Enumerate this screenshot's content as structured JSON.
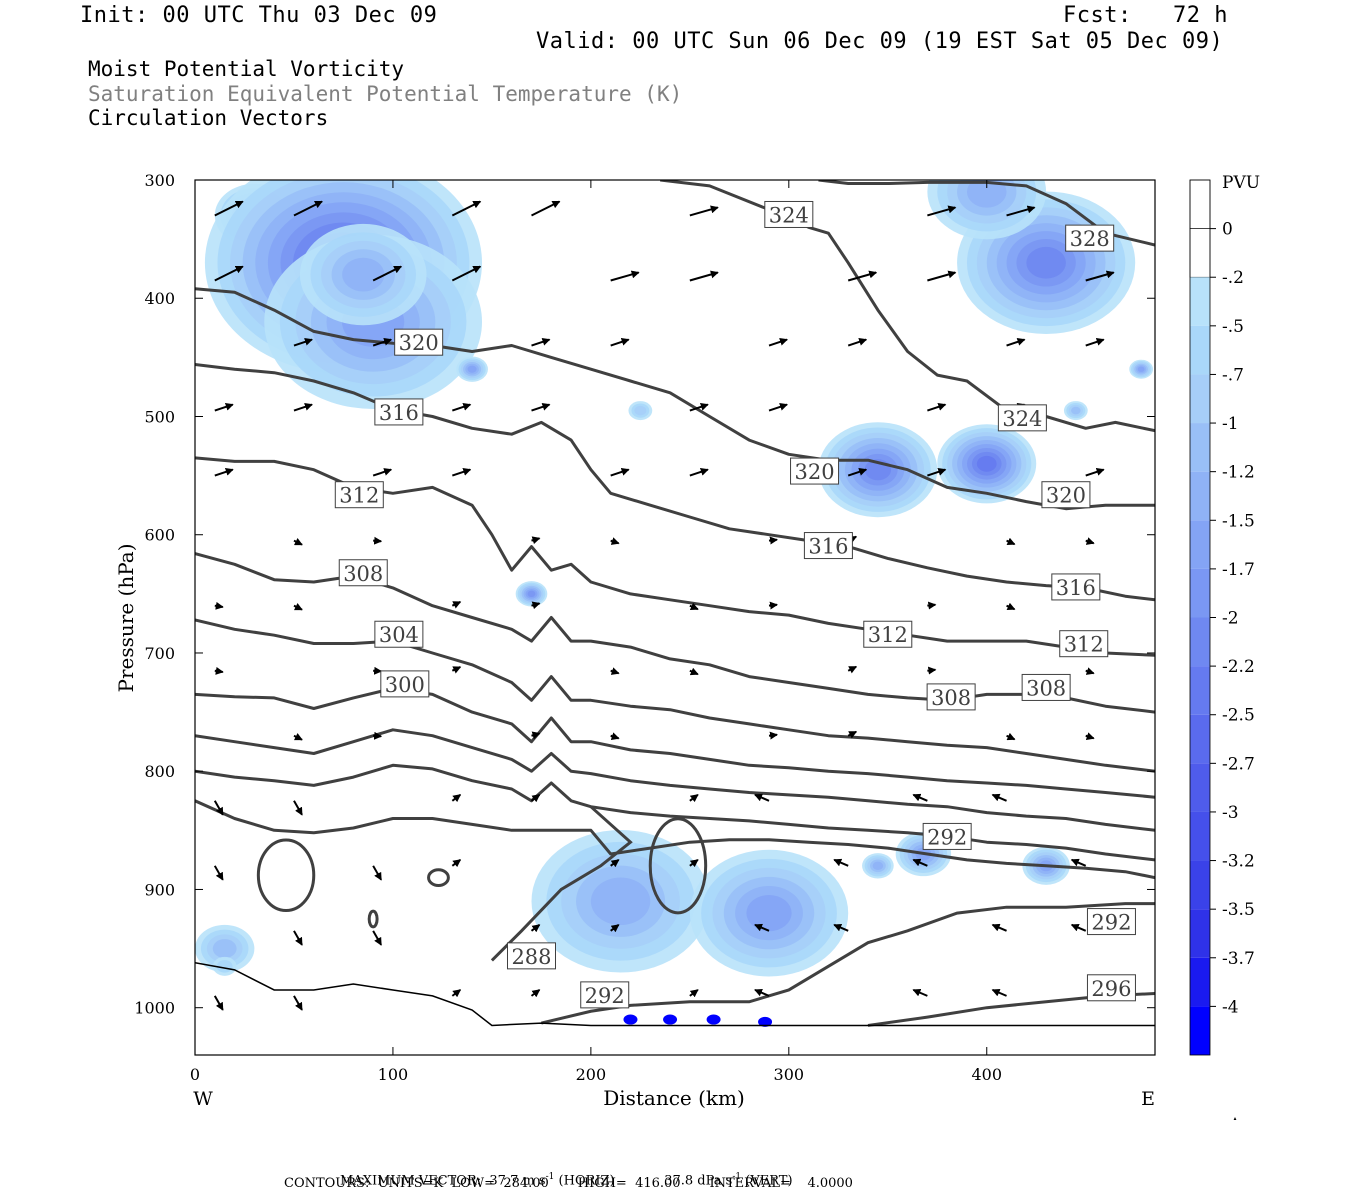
{
  "header": {
    "init": "Init: 00 UTC Thu 03 Dec 09",
    "fcst": "Fcst:   72 h",
    "valid": "Valid: 00 UTC Sun 06 Dec 09 (19 EST Sat 05 Dec 09)",
    "field1": "Moist Potential Vorticity",
    "field2": "Saturation Equivalent Potential Temperature (K)",
    "field3": "Circulation Vectors"
  },
  "footer": {
    "max_vector_label": "MAXIMUM VECTOR:",
    "horiz_value": "37.7 m s",
    "horiz_unit": "(HORIZ)",
    "vert_value": "37.8 dPa s",
    "vert_unit": "(VERT)",
    "exp": "-1",
    "contours": "CONTOURS:  UNITS=K  LOW=  284.00       HIGH=  416.00       INTERVAL=    4.0000"
  },
  "colors": {
    "contour": "#404040",
    "pv_light": "#b8e2fa",
    "pv_mid": "#99bff7",
    "pv_dark": "#0000ff"
  },
  "chart_data": {
    "type": "contour",
    "xlabel": "Distance (km)",
    "ylabel": "Pressure (hPa)",
    "x_ticks": [
      "0",
      "100",
      "200",
      "300",
      "400"
    ],
    "y_ticks": [
      "300",
      "400",
      "500",
      "600",
      "700",
      "800",
      "900",
      "1000"
    ],
    "xlim": [
      0,
      485
    ],
    "ylim": [
      300,
      1040
    ],
    "left_end": "W",
    "right_end": "E",
    "colorbar": {
      "unit": "PVU",
      "labels": [
        "0",
        "-.2",
        "-.5",
        "-.7",
        "-1",
        "-1.2",
        "-1.5",
        "-1.7",
        "-2",
        "-2.2",
        "-2.5",
        "-2.7",
        "-3",
        "-3.2",
        "-3.5",
        "-3.7",
        "-4"
      ],
      "colors": [
        "#ffffff",
        "#ffffff",
        "#b8e2fa",
        "#a9d7f9",
        "#a6cef8",
        "#99bff7",
        "#8fb2f6",
        "#84a4f5",
        "#7a97f3",
        "#6f88f1",
        "#657af0",
        "#5a6bee",
        "#4f5cec",
        "#4550eb",
        "#3a42e9",
        "#2f32e8",
        "#1a1af0",
        "#0000ff"
      ]
    },
    "contour_labels": [
      {
        "text": "324",
        "x": 300,
        "p": 330
      },
      {
        "text": "328",
        "x": 452,
        "p": 350
      },
      {
        "text": "320",
        "x": 113,
        "p": 438
      },
      {
        "text": "324",
        "x": 418,
        "p": 502
      },
      {
        "text": "316",
        "x": 103,
        "p": 497
      },
      {
        "text": "320",
        "x": 313,
        "p": 547
      },
      {
        "text": "320",
        "x": 440,
        "p": 567
      },
      {
        "text": "312",
        "x": 83,
        "p": 567
      },
      {
        "text": "316",
        "x": 320,
        "p": 610
      },
      {
        "text": "308",
        "x": 85,
        "p": 633
      },
      {
        "text": "316",
        "x": 445,
        "p": 645
      },
      {
        "text": "304",
        "x": 103,
        "p": 685
      },
      {
        "text": "312",
        "x": 350,
        "p": 685
      },
      {
        "text": "312",
        "x": 449,
        "p": 693
      },
      {
        "text": "300",
        "x": 106,
        "p": 727
      },
      {
        "text": "308",
        "x": 382,
        "p": 738
      },
      {
        "text": "308",
        "x": 430,
        "p": 730
      },
      {
        "text": "292",
        "x": 380,
        "p": 856
      },
      {
        "text": "292",
        "x": 463,
        "p": 928
      },
      {
        "text": "288",
        "x": 170,
        "p": 957
      },
      {
        "text": "292",
        "x": 207,
        "p": 990
      },
      {
        "text": "296",
        "x": 463,
        "p": 984
      }
    ],
    "contours": [
      {
        "label": "328",
        "x": [
          315,
          330,
          350,
          370,
          400,
          420,
          440,
          460,
          485
        ],
        "p": [
          300,
          303,
          303,
          302,
          302,
          305,
          320,
          345,
          355
        ]
      },
      {
        "label": "324",
        "x": [
          235,
          260,
          290,
          310,
          320,
          330,
          345,
          360,
          375,
          390,
          410,
          430,
          450,
          465,
          485
        ],
        "p": [
          300,
          305,
          325,
          340,
          345,
          370,
          410,
          445,
          465,
          470,
          495,
          500,
          510,
          505,
          512
        ]
      },
      {
        "label": "320",
        "x": [
          0,
          20,
          40,
          60,
          80,
          100,
          120,
          140,
          160,
          180,
          200,
          220,
          240,
          260,
          280,
          300,
          320,
          340,
          360,
          380,
          400,
          420,
          440,
          460,
          485
        ],
        "p": [
          392,
          395,
          410,
          428,
          435,
          438,
          440,
          445,
          440,
          450,
          460,
          470,
          480,
          500,
          520,
          532,
          537,
          537,
          545,
          560,
          565,
          572,
          578,
          575,
          575
        ]
      },
      {
        "label": "316",
        "x": [
          0,
          20,
          40,
          60,
          80,
          100,
          120,
          140,
          160,
          175,
          190,
          200,
          210,
          230,
          250,
          270,
          290,
          310,
          330,
          350,
          370,
          390,
          410,
          430,
          450,
          470,
          485
        ],
        "p": [
          456,
          460,
          463,
          470,
          480,
          494,
          500,
          510,
          515,
          505,
          520,
          545,
          565,
          575,
          585,
          595,
          600,
          605,
          610,
          620,
          628,
          635,
          640,
          643,
          645,
          652,
          655
        ]
      },
      {
        "label": "312",
        "x": [
          0,
          20,
          40,
          60,
          80,
          100,
          120,
          140,
          150,
          160,
          170,
          180,
          190,
          200,
          220,
          240,
          260,
          280,
          300,
          320,
          340,
          360,
          380,
          400,
          420,
          440,
          460,
          485
        ],
        "p": [
          535,
          538,
          538,
          545,
          560,
          565,
          560,
          575,
          600,
          630,
          610,
          630,
          625,
          640,
          650,
          655,
          660,
          665,
          668,
          675,
          680,
          685,
          690,
          690,
          690,
          695,
          700,
          702
        ]
      },
      {
        "label": "308",
        "x": [
          0,
          20,
          40,
          60,
          80,
          100,
          120,
          140,
          160,
          170,
          180,
          190,
          200,
          220,
          240,
          260,
          280,
          300,
          320,
          340,
          360,
          380,
          400,
          420,
          440,
          460,
          485
        ],
        "p": [
          616,
          625,
          638,
          640,
          635,
          645,
          660,
          670,
          680,
          690,
          670,
          690,
          690,
          695,
          705,
          710,
          720,
          725,
          730,
          735,
          738,
          740,
          735,
          735,
          738,
          745,
          750
        ]
      },
      {
        "label": "304",
        "x": [
          0,
          20,
          40,
          60,
          80,
          100,
          120,
          140,
          160,
          170,
          180,
          190,
          200,
          220,
          240,
          260,
          280,
          300,
          320,
          340,
          360,
          380,
          400,
          420,
          440,
          460,
          485
        ],
        "p": [
          672,
          680,
          685,
          692,
          692,
          690,
          700,
          710,
          725,
          740,
          720,
          740,
          740,
          745,
          748,
          755,
          760,
          765,
          770,
          772,
          775,
          778,
          780,
          785,
          790,
          795,
          800
        ]
      },
      {
        "label": "300",
        "x": [
          0,
          20,
          40,
          60,
          80,
          100,
          120,
          140,
          160,
          170,
          180,
          190,
          200,
          220,
          240,
          260,
          280,
          300,
          320,
          340,
          360,
          380,
          400,
          420,
          440,
          460,
          485
        ],
        "p": [
          735,
          737,
          738,
          747,
          738,
          730,
          735,
          750,
          760,
          775,
          755,
          775,
          775,
          782,
          785,
          790,
          795,
          797,
          800,
          802,
          805,
          808,
          810,
          812,
          815,
          818,
          822
        ]
      },
      {
        "label": "296a",
        "x": [
          0,
          20,
          40,
          60,
          80,
          100,
          120,
          140,
          160,
          170,
          180,
          190,
          200,
          220,
          240,
          260,
          280,
          300,
          320,
          340,
          360,
          380,
          400,
          420,
          440,
          460,
          485
        ],
        "p": [
          770,
          775,
          780,
          785,
          775,
          765,
          770,
          780,
          790,
          800,
          785,
          800,
          802,
          808,
          812,
          815,
          818,
          820,
          822,
          825,
          828,
          830,
          835,
          838,
          840,
          845,
          850
        ]
      },
      {
        "label": "296b",
        "x": [
          0,
          20,
          40,
          60,
          80,
          100,
          120,
          140,
          160,
          170,
          180,
          190,
          200,
          220,
          240,
          260,
          280,
          300,
          320,
          340,
          360,
          380,
          400,
          420,
          440,
          460,
          485
        ],
        "p": [
          800,
          805,
          808,
          812,
          805,
          795,
          798,
          808,
          815,
          825,
          810,
          825,
          830,
          835,
          838,
          840,
          842,
          845,
          848,
          850,
          852,
          855,
          860,
          862,
          865,
          870,
          875
        ]
      },
      {
        "label": "292",
        "x": [
          0,
          20,
          40,
          60,
          80,
          100,
          120,
          140,
          160,
          180,
          200,
          210,
          230,
          250,
          270,
          290,
          310,
          330,
          350,
          370,
          390,
          410,
          430,
          450,
          470,
          485
        ],
        "p": [
          825,
          840,
          850,
          852,
          848,
          840,
          840,
          845,
          850,
          850,
          850,
          870,
          865,
          860,
          858,
          858,
          860,
          862,
          865,
          870,
          875,
          878,
          880,
          882,
          885,
          890
        ]
      }
    ],
    "maximum_vector": {
      "horiz": 37.7,
      "vert": 37.8
    }
  }
}
